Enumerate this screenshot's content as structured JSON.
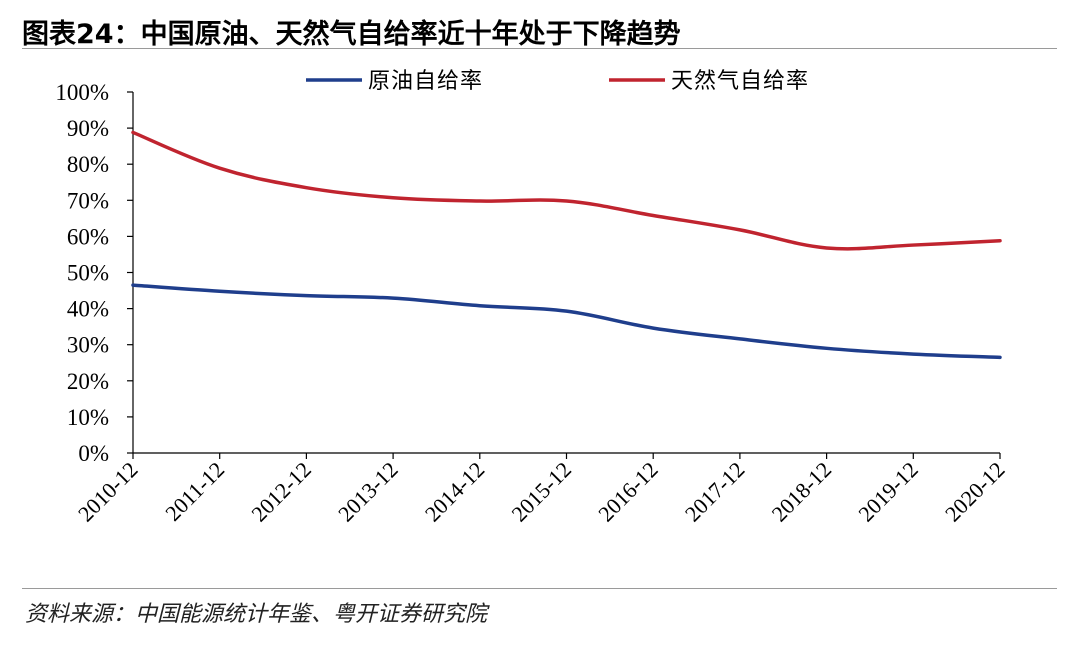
{
  "title": "图表24：中国原油、天然气自给率近十年处于下降趋势",
  "source": "资料来源：中国能源统计年鉴、粤开证券研究院",
  "colors": {
    "crude": "#1f3e8c",
    "gas": "#c0242f",
    "axis": "#000000"
  },
  "chart_data": {
    "type": "line",
    "title": "图表24：中国原油、天然气自给率近十年处于下降趋势",
    "xlabel": "",
    "ylabel": "",
    "ylim": [
      0,
      100
    ],
    "yticks": [
      "0%",
      "10%",
      "20%",
      "30%",
      "40%",
      "50%",
      "60%",
      "70%",
      "80%",
      "90%",
      "100%"
    ],
    "categories": [
      "2010-12",
      "2011-12",
      "2012-12",
      "2013-12",
      "2014-12",
      "2015-12",
      "2016-12",
      "2017-12",
      "2018-12",
      "2019-12",
      "2020-12"
    ],
    "legend_position": "top",
    "grid": false,
    "series": [
      {
        "name": "原油自给率",
        "values": [
          46.5,
          44.8,
          43.6,
          42.9,
          40.8,
          39.3,
          34.6,
          31.6,
          29.0,
          27.4,
          26.5
        ]
      },
      {
        "name": "天然气自给率",
        "values": [
          88.8,
          78.9,
          73.5,
          70.7,
          69.8,
          69.8,
          65.8,
          61.8,
          56.8,
          57.6,
          58.8
        ]
      }
    ]
  }
}
